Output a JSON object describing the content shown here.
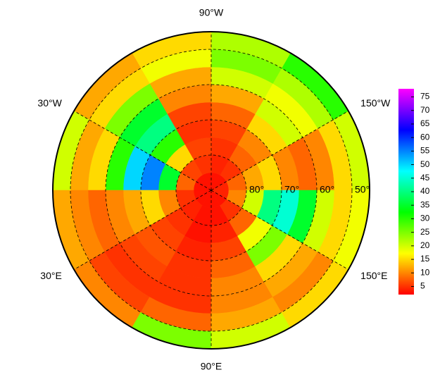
{
  "chart_data": {
    "type": "polar-heatmap",
    "lat_edges": [
      90,
      85,
      80,
      75,
      70,
      65,
      60,
      55,
      50,
      45
    ],
    "lon_edges": [
      -180,
      -150,
      -120,
      -90,
      -60,
      -30,
      0,
      30,
      60,
      90,
      120,
      150,
      180
    ],
    "values": [
      [
        4,
        3,
        3,
        3,
        3,
        3,
        3,
        3,
        3,
        3,
        3,
        4
      ],
      [
        8,
        5,
        4,
        5,
        6,
        8,
        5,
        4,
        3,
        3,
        5,
        10
      ],
      [
        12,
        8,
        5,
        6,
        15,
        35,
        10,
        5,
        3,
        4,
        8,
        20
      ],
      [
        15,
        10,
        6,
        5,
        30,
        55,
        15,
        6,
        4,
        6,
        18,
        40
      ],
      [
        10,
        15,
        8,
        6,
        40,
        50,
        12,
        7,
        5,
        8,
        25,
        45
      ],
      [
        8,
        20,
        12,
        10,
        35,
        30,
        10,
        6,
        5,
        10,
        15,
        35
      ],
      [
        10,
        18,
        20,
        12,
        25,
        15,
        8,
        5,
        5,
        10,
        12,
        20
      ],
      [
        15,
        22,
        25,
        18,
        15,
        12,
        10,
        6,
        8,
        12,
        10,
        15
      ],
      [
        20,
        30,
        22,
        15,
        12,
        20,
        12,
        10,
        25,
        20,
        15,
        18
      ]
    ],
    "clim": [
      2,
      78
    ],
    "colorbar_ticks": [
      5,
      10,
      15,
      20,
      25,
      30,
      35,
      40,
      45,
      50,
      55,
      60,
      65,
      70,
      75
    ],
    "lat_ticks": [
      {
        "value": 80,
        "label": "80°"
      },
      {
        "value": 70,
        "label": "70°"
      },
      {
        "value": 60,
        "label": "60°"
      },
      {
        "value": 50,
        "label": "50°"
      }
    ],
    "lon_ticks": [
      {
        "value": -90,
        "label": "90°W"
      },
      {
        "value": -30,
        "label": "30°W"
      },
      {
        "value": -150,
        "label": "150°W"
      },
      {
        "value": 30,
        "label": "30°E"
      },
      {
        "value": 150,
        "label": "150°E"
      },
      {
        "value": 90,
        "label": "90°E"
      }
    ]
  }
}
